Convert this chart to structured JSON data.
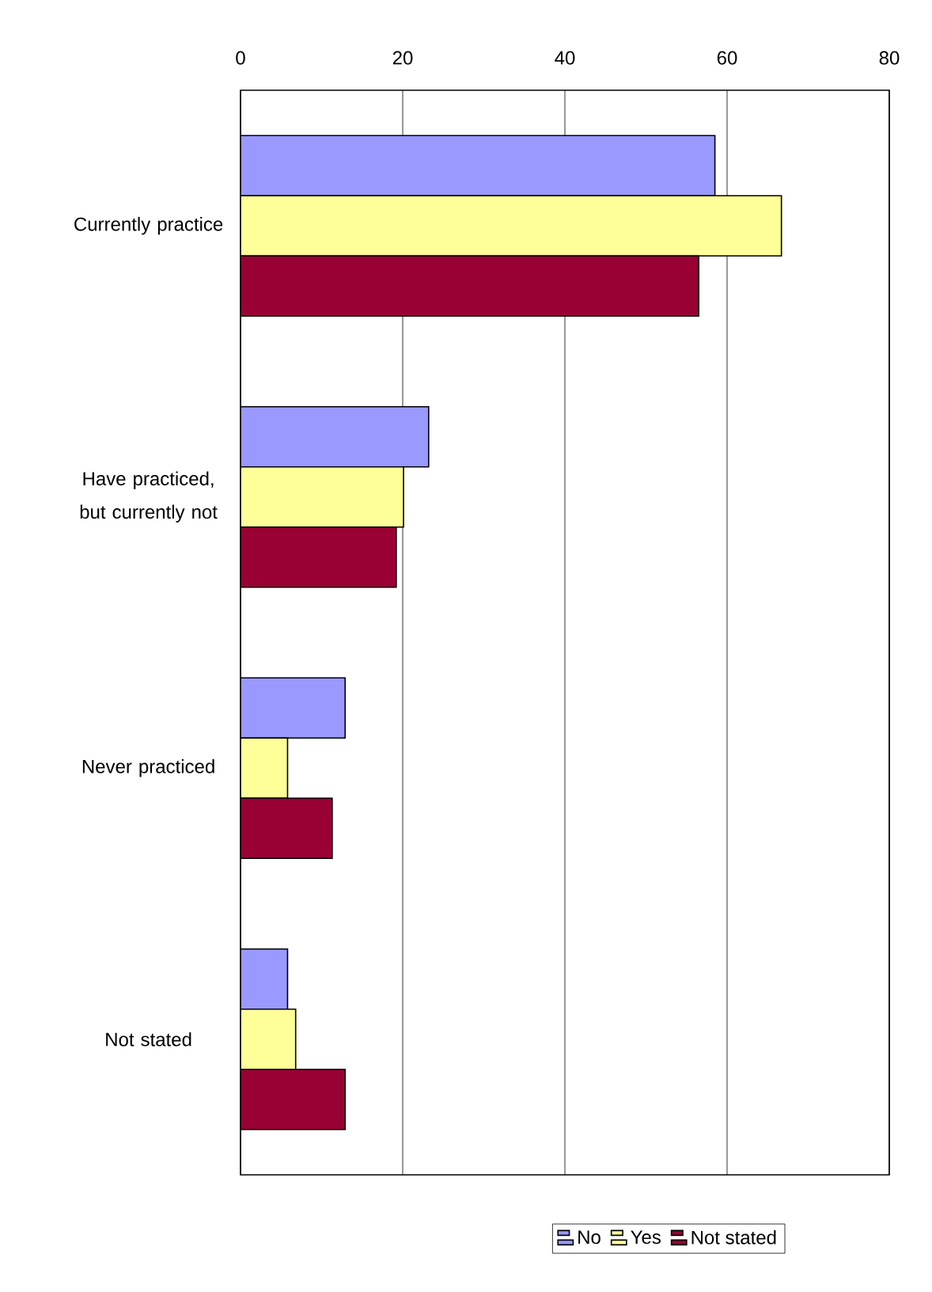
{
  "chart_data": {
    "type": "bar",
    "orientation": "horizontal",
    "categories": [
      "Currently practice",
      "Have practiced, but currently not",
      "Never practiced",
      "Not stated"
    ],
    "series": [
      {
        "name": "No",
        "color": "#9999ff",
        "values": [
          58.5,
          23.2,
          12.9,
          5.8
        ]
      },
      {
        "name": "Yes",
        "color": "#ffff99",
        "values": [
          66.7,
          20.1,
          5.8,
          6.8
        ]
      },
      {
        "name": "Not stated",
        "color": "#990033",
        "values": [
          56.5,
          19.2,
          11.3,
          12.9
        ]
      }
    ],
    "xlim": [
      0,
      80
    ],
    "xticks": [
      0,
      20,
      40,
      60,
      80
    ],
    "grid": "x",
    "legend": "bottom"
  }
}
